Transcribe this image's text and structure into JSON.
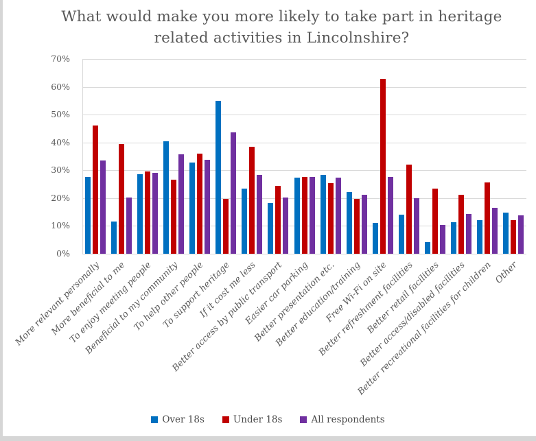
{
  "window": {
    "edge_color": "#d6d6d6",
    "background": "#ffffff"
  },
  "chart_data": {
    "type": "bar",
    "title_lines": [
      "What would make you more likely to take part in heritage",
      "related activities in Lincolnshire?"
    ],
    "title_full": "What would make you more likely to take part in heritage related activities in Lincolnshire?",
    "categories": [
      "More relevant personally",
      "More beneficial to me",
      "To enjoy meeting people",
      "Beneficial to my community",
      "To help other people",
      "To support heritage",
      "If it cost me less",
      "Better access by public transport",
      "Easier car parking",
      "Better presentation etc.",
      "Better education/training",
      "Free Wi-Fi on site",
      "Better refreshment facilities",
      "Better retail facilities",
      "Better access/disabled facilities",
      "Better recreational facilities for children",
      "Other"
    ],
    "series": [
      {
        "name": "Over 18s",
        "color": "#0070C0",
        "values": [
          27.5,
          11.5,
          28.5,
          40.3,
          32.7,
          55.0,
          23.5,
          18.2,
          27.3,
          28.3,
          22.1,
          11.1,
          14.1,
          4.2,
          11.3,
          12.0,
          14.9
        ]
      },
      {
        "name": "Under 18s",
        "color": "#C00000",
        "values": [
          46.0,
          39.5,
          29.5,
          26.7,
          35.9,
          19.7,
          38.5,
          24.5,
          27.6,
          25.3,
          19.6,
          62.8,
          32.0,
          23.4,
          21.2,
          25.7,
          12.2
        ]
      },
      {
        "name": "All respondents",
        "color": "#7030A0",
        "values": [
          33.5,
          20.3,
          29.0,
          35.8,
          33.8,
          43.7,
          28.4,
          20.1,
          27.6,
          27.4,
          21.2,
          27.6,
          19.9,
          10.4,
          14.3,
          16.4,
          13.7
        ]
      }
    ],
    "xlabel": "",
    "ylabel": "",
    "ylim": [
      0,
      70
    ],
    "ytick_step": 10,
    "ytick_suffix": "%",
    "grid": true,
    "legend_position": "bottom",
    "colors": {
      "gridline": "#d9d9d9",
      "axis_text": "#595959",
      "title_text": "#595959"
    }
  }
}
